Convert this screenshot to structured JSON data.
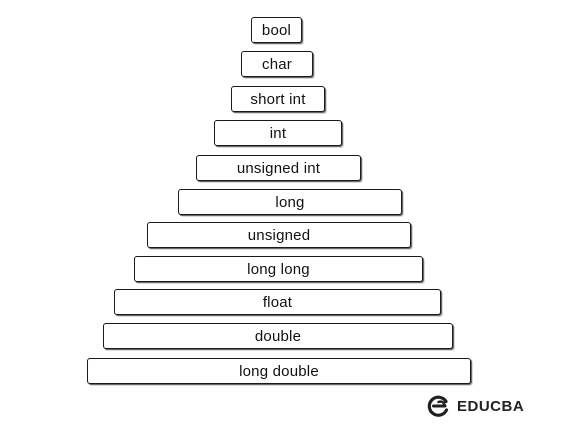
{
  "diagram": {
    "tiers": [
      {
        "label": "bool"
      },
      {
        "label": "char"
      },
      {
        "label": "short int"
      },
      {
        "label": "int"
      },
      {
        "label": "unsigned int"
      },
      {
        "label": "long"
      },
      {
        "label": "unsigned"
      },
      {
        "label": "long long"
      },
      {
        "label": "float"
      },
      {
        "label": "double"
      },
      {
        "label": "long double"
      }
    ]
  },
  "brand": {
    "name": "EDUCBA",
    "icon": "educba-logo-icon"
  }
}
